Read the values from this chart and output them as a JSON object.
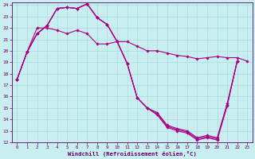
{
  "xlabel": "Windchill (Refroidissement éolien,°C)",
  "bg_color": "#c8eef0",
  "line_color": "#aa0088",
  "grid_color": "#aadddd",
  "xlim": [
    -0.5,
    23.5
  ],
  "ylim": [
    12,
    24.2
  ],
  "yticks": [
    12,
    13,
    14,
    15,
    16,
    17,
    18,
    19,
    20,
    21,
    22,
    23,
    24
  ],
  "xticks": [
    0,
    1,
    2,
    3,
    4,
    5,
    6,
    7,
    8,
    9,
    10,
    11,
    12,
    13,
    14,
    15,
    16,
    17,
    18,
    19,
    20,
    21,
    22,
    23
  ],
  "series": [
    [
      17.5,
      19.9,
      21.5,
      22.2,
      23.7,
      23.8,
      23.7,
      24.1,
      22.9,
      22.3,
      20.8,
      18.9,
      15.9,
      15.0,
      14.4,
      13.3,
      13.0,
      12.8,
      12.2,
      12.4,
      12.2,
      15.2,
      19.1,
      null
    ],
    [
      17.5,
      19.9,
      21.5,
      22.2,
      23.7,
      23.8,
      23.7,
      24.1,
      22.9,
      22.3,
      20.8,
      18.9,
      15.9,
      15.0,
      14.5,
      13.4,
      13.1,
      12.9,
      12.3,
      12.5,
      12.3,
      15.3,
      19.1,
      null
    ],
    [
      17.5,
      19.9,
      21.5,
      22.2,
      23.7,
      23.8,
      23.7,
      24.1,
      22.9,
      22.3,
      20.8,
      18.9,
      15.9,
      15.0,
      14.6,
      13.5,
      13.2,
      13.0,
      12.4,
      12.6,
      12.4,
      15.4,
      19.1,
      null
    ],
    [
      17.5,
      19.9,
      22.0,
      22.0,
      21.8,
      21.5,
      21.8,
      21.5,
      20.6,
      20.6,
      20.8,
      20.8,
      20.4,
      20.0,
      20.0,
      19.8,
      19.6,
      19.5,
      19.3,
      19.4,
      19.5,
      19.4,
      19.4,
      19.1
    ]
  ]
}
